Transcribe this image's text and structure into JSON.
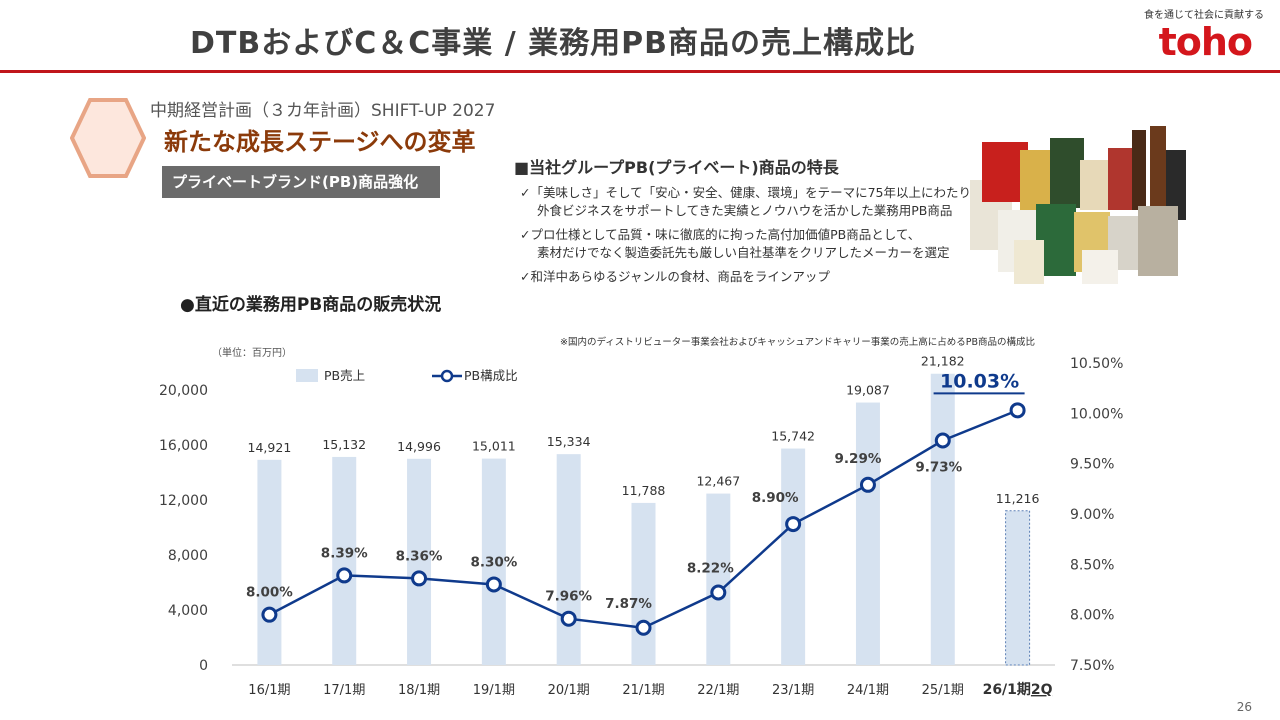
{
  "header": {
    "title": "DTBおよびC＆C事業 / 業務用PB商品の売上構成比",
    "tagline": "食を通じて社会に貢献する",
    "logo": "toho"
  },
  "plan": {
    "title": "中期経営計画（３カ年計画）SHIFT-UP 2027",
    "subtitle": "新たな成長ステージへの変革",
    "tag": "プライベートブランド(PB)商品強化"
  },
  "features": {
    "heading": "■当社グループPB(プライベート)商品の特長",
    "items": [
      {
        "line1": "✓「美味しさ」そして「安心・安全、健康、環境」をテーマに75年以上にわたり、",
        "line2": "外食ビジネスをサポートしてきた実績とノウハウを活かした業務用PB商品"
      },
      {
        "line1": "✓プロ仕様として品質・味に徹底的に拘った高付加価値PB商品として、",
        "line2": "素材だけでなく製造委託先も厳しい自社基準をクリアしたメーカーを選定"
      },
      {
        "line1": "✓和洋中あらゆるジャンルの食材、商品をラインアップ",
        "line2": ""
      }
    ]
  },
  "sales_section": {
    "heading": "●直近の業務用PB商品の販売状況",
    "footnote": "※国内のディストリビューター事業会社およびキャッシュアンドキャリー事業の売上高に占めるPB商品の構成比",
    "unit": "（単位：百万円）"
  },
  "page_number": "26",
  "colors": {
    "accent_red": "#c0161b",
    "bar": "#d6e2f0",
    "line": "#0f3a8c",
    "plan_brown": "#8b3a0a"
  },
  "chart_data": {
    "type": "bar+line",
    "categories": [
      "16/1期",
      "17/1期",
      "18/1期",
      "19/1期",
      "20/1期",
      "21/1期",
      "22/1期",
      "23/1期",
      "24/1期",
      "25/1期",
      "26/1期"
    ],
    "last_category_suffix": "2Q",
    "series": [
      {
        "name": "PB売上",
        "type": "bar",
        "axis": "left",
        "values": [
          14921,
          15132,
          14996,
          15011,
          15334,
          11788,
          12467,
          15742,
          19087,
          21182,
          11216
        ],
        "labels": [
          "14,921",
          "15,132",
          "14,996",
          "15,011",
          "15,334",
          "11,788",
          "12,467",
          "15,742",
          "19,087",
          "21,182",
          "11,216"
        ],
        "last_bar_dashed": true
      },
      {
        "name": "PB構成比",
        "type": "line",
        "axis": "right",
        "values": [
          8.0,
          8.39,
          8.36,
          8.3,
          7.96,
          7.87,
          8.22,
          8.9,
          9.29,
          9.73,
          10.03
        ],
        "labels": [
          "8.00%",
          "8.39%",
          "8.36%",
          "8.30%",
          "7.96%",
          "7.87%",
          "8.22%",
          "8.90%",
          "9.29%",
          "9.73%",
          "10.03%"
        ]
      }
    ],
    "y_left": {
      "min": 0,
      "max": 20000,
      "ticks": [
        "0",
        "4,000",
        "8,000",
        "12,000",
        "16,000",
        "20,000"
      ]
    },
    "y_right": {
      "min": 7.5,
      "max": 10.5,
      "ticks": [
        "7.50%",
        "8.00%",
        "8.50%",
        "9.00%",
        "9.50%",
        "10.00%",
        "10.50%"
      ]
    },
    "legend": "top-left"
  }
}
